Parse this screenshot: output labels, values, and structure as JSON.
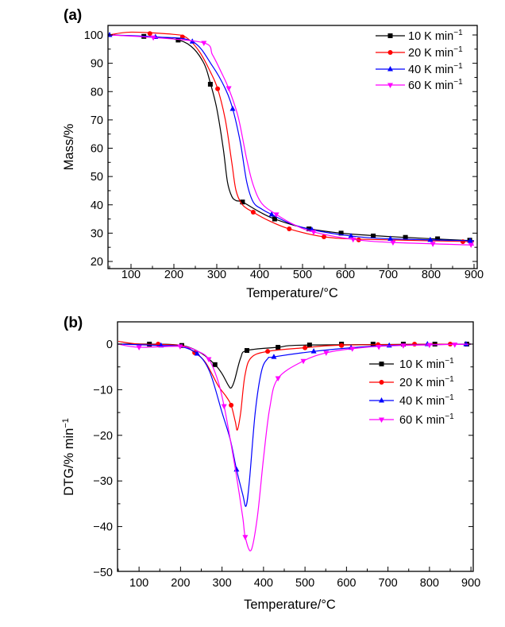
{
  "chart_data": [
    {
      "panel_label": "(a)",
      "type": "line",
      "xlabel": "Temperature/°C",
      "ylabel": "Mass/%",
      "xlim": [
        50,
        900
      ],
      "ylim": [
        20,
        102
      ],
      "xticks": [
        100,
        200,
        300,
        400,
        500,
        600,
        700,
        800,
        900
      ],
      "yticks": [
        20,
        30,
        40,
        50,
        60,
        70,
        80,
        90,
        100
      ],
      "grid": false,
      "legend_placement": "top-right",
      "series": [
        {
          "name": "10 K min",
          "sup": "−1",
          "color": "#000000",
          "marker": "square",
          "curve": [
            [
              50,
              100
            ],
            [
              130,
              99.5
            ],
            [
              200,
              98.6
            ],
            [
              240,
              96
            ],
            [
              270,
              90
            ],
            [
              285,
              83
            ],
            [
              300,
              74
            ],
            [
              315,
              60
            ],
            [
              325,
              48
            ],
            [
              335,
              43
            ],
            [
              345,
              41.5
            ],
            [
              360,
              41
            ],
            [
              400,
              37.5
            ],
            [
              435,
              35
            ],
            [
              500,
              32
            ],
            [
              590,
              30
            ],
            [
              700,
              28.8
            ],
            [
              900,
              27.3
            ]
          ],
          "markers": [
            [
              130,
              99.5
            ],
            [
              210,
              98.2
            ],
            [
              285,
              82.6
            ],
            [
              360,
              41
            ],
            [
              435,
              35
            ],
            [
              515,
              31.5
            ],
            [
              590,
              30
            ],
            [
              665,
              29
            ],
            [
              740,
              28.5
            ],
            [
              815,
              28
            ],
            [
              890,
              27.5
            ]
          ]
        },
        {
          "name": "20 K min",
          "sup": "−1",
          "color": "#ff0000",
          "marker": "circle",
          "curve": [
            [
              50,
              100
            ],
            [
              100,
              101
            ],
            [
              200,
              100.2
            ],
            [
              230,
              99
            ],
            [
              260,
              94
            ],
            [
              285,
              87
            ],
            [
              302,
              81
            ],
            [
              320,
              70
            ],
            [
              335,
              55
            ],
            [
              345,
              45
            ],
            [
              360,
              40
            ],
            [
              385,
              37.4
            ],
            [
              420,
              34.5
            ],
            [
              469,
              31.5
            ],
            [
              550,
              28.7
            ],
            [
              650,
              27.8
            ],
            [
              900,
              27
            ]
          ],
          "markers": [
            [
              144,
              100.5
            ],
            [
              220,
              99.3
            ],
            [
              302,
              81
            ],
            [
              385,
              37.4
            ],
            [
              469,
              31.5
            ],
            [
              550,
              28.7
            ],
            [
              631,
              27.6
            ],
            [
              874,
              27
            ]
          ]
        },
        {
          "name": "40 K min",
          "sup": "−1",
          "color": "#0000ff",
          "marker": "triangle-up",
          "curve": [
            [
              50,
              100
            ],
            [
              157,
              99.3
            ],
            [
              243,
              97.7
            ],
            [
              290,
              89
            ],
            [
              320,
              81
            ],
            [
              337,
              74
            ],
            [
              355,
              62
            ],
            [
              370,
              48
            ],
            [
              385,
              41
            ],
            [
              405,
              38.5
            ],
            [
              428,
              36.6
            ],
            [
              470,
              33.5
            ],
            [
              522,
              31.2
            ],
            [
              613,
              29
            ],
            [
              705,
              28
            ],
            [
              900,
              27.3
            ]
          ],
          "markers": [
            [
              50,
              100
            ],
            [
              157,
              99.3
            ],
            [
              243,
              97.7
            ],
            [
              337,
              73.9
            ],
            [
              428,
              36.6
            ],
            [
              522,
              31.2
            ],
            [
              613,
              29
            ],
            [
              705,
              28
            ],
            [
              798,
              27.6
            ],
            [
              891,
              27.3
            ]
          ]
        },
        {
          "name": "60 K min",
          "sup": "−1",
          "color": "#ff00ff",
          "marker": "triangle-down",
          "curve": [
            [
              50,
              100
            ],
            [
              152,
              99.1
            ],
            [
              270,
              97.2
            ],
            [
              290,
              93
            ],
            [
              310,
              87
            ],
            [
              328,
              81
            ],
            [
              350,
              71
            ],
            [
              370,
              56
            ],
            [
              385,
              47
            ],
            [
              405,
              40.5
            ],
            [
              439,
              36.6
            ],
            [
              480,
              33
            ],
            [
              526,
              30.4
            ],
            [
              618,
              27.8
            ],
            [
              711,
              26.7
            ],
            [
              900,
              25.8
            ]
          ],
          "markers": [
            [
              152,
              99.1
            ],
            [
              270,
              97.2
            ],
            [
              328,
              81.2
            ],
            [
              439,
              36.6
            ],
            [
              526,
              30.4
            ],
            [
              618,
              27.8
            ],
            [
              711,
              26.7
            ],
            [
              804,
              26.2
            ],
            [
              893,
              25.9
            ]
          ]
        }
      ]
    },
    {
      "panel_label": "(b)",
      "type": "line",
      "xlabel": "Temperature/°C",
      "ylabel": "DTG/% min",
      "ylabel_sup": "−1",
      "xlim": [
        50,
        900
      ],
      "ylim": [
        -50,
        2.5
      ],
      "xticks": [
        100,
        200,
        300,
        400,
        500,
        600,
        700,
        800,
        900
      ],
      "yticks": [
        -50,
        -40,
        -30,
        -20,
        -10,
        0
      ],
      "grid": false,
      "legend_placement": "right",
      "series": [
        {
          "name": "10 K min",
          "sup": "−1",
          "color": "#000000",
          "marker": "square",
          "curve": [
            [
              50,
              0
            ],
            [
              125,
              0
            ],
            [
              203,
              -0.3
            ],
            [
              250,
              -2
            ],
            [
              283,
              -4.5
            ],
            [
              300,
              -6.5
            ],
            [
              315,
              -9
            ],
            [
              322,
              -9.6
            ],
            [
              330,
              -8
            ],
            [
              345,
              -3
            ],
            [
              360,
              -1.4
            ],
            [
              435,
              -0.7
            ],
            [
              511,
              -0.2
            ],
            [
              900,
              0
            ]
          ],
          "markers": [
            [
              125,
              0
            ],
            [
              203,
              -0.3
            ],
            [
              283,
              -4.5
            ],
            [
              360,
              -1.4
            ],
            [
              435,
              -0.7
            ],
            [
              511,
              -0.2
            ],
            [
              588,
              0
            ],
            [
              664,
              0
            ],
            [
              737,
              0
            ],
            [
              813,
              0
            ],
            [
              890,
              0
            ]
          ]
        },
        {
          "name": "20 K min",
          "sup": "−1",
          "color": "#ff0000",
          "marker": "circle",
          "curve": [
            [
              50,
              0.6
            ],
            [
              100,
              0
            ],
            [
              200,
              -0.3
            ],
            [
              234,
              -1.9
            ],
            [
              260,
              -4
            ],
            [
              290,
              -9
            ],
            [
              310,
              -11.5
            ],
            [
              322,
              -13.4
            ],
            [
              332,
              -17
            ],
            [
              337,
              -18.8
            ],
            [
              345,
              -15
            ],
            [
              355,
              -7
            ],
            [
              370,
              -3
            ],
            [
              410,
              -1.6
            ],
            [
              500,
              -0.8
            ],
            [
              600,
              -0.2
            ],
            [
              900,
              0
            ]
          ],
          "markers": [
            [
              146,
              0
            ],
            [
              234,
              -1.9
            ],
            [
              322,
              -13.4
            ],
            [
              410,
              -1.6
            ],
            [
              500,
              -0.8
            ],
            [
              588,
              -0.3
            ],
            [
              676,
              -0.1
            ],
            [
              764,
              0
            ],
            [
              850,
              0
            ]
          ]
        },
        {
          "name": "40 K min",
          "sup": "−1",
          "color": "#0000ff",
          "marker": "triangle-up",
          "curve": [
            [
              50,
              0
            ],
            [
              153,
              -0.3
            ],
            [
              200,
              -0.5
            ],
            [
              240,
              -2.1
            ],
            [
              270,
              -6
            ],
            [
              300,
              -15
            ],
            [
              320,
              -21
            ],
            [
              335,
              -27.5
            ],
            [
              350,
              -33
            ],
            [
              358,
              -35.5
            ],
            [
              366,
              -30
            ],
            [
              380,
              -15
            ],
            [
              395,
              -6
            ],
            [
              410,
              -3.2
            ],
            [
              425,
              -2.8
            ],
            [
              521,
              -1.6
            ],
            [
              611,
              -0.8
            ],
            [
              703,
              -0.3
            ],
            [
              900,
              0
            ]
          ],
          "markers": [
            [
              153,
              -0.3
            ],
            [
              240,
              -2.1
            ],
            [
              335,
              -27.5
            ],
            [
              425,
              -2.8
            ],
            [
              521,
              -1.6
            ],
            [
              611,
              -0.8
            ],
            [
              703,
              -0.3
            ],
            [
              795,
              0
            ],
            [
              888,
              0
            ]
          ]
        },
        {
          "name": "60 K min",
          "sup": "−1",
          "color": "#ff00ff",
          "marker": "triangle-down",
          "curve": [
            [
              50,
              0
            ],
            [
              100,
              -0.7
            ],
            [
              200,
              -0.5
            ],
            [
              240,
              -1.5
            ],
            [
              268,
              -3.3
            ],
            [
              290,
              -8
            ],
            [
              305,
              -13.6
            ],
            [
              320,
              -21
            ],
            [
              335,
              -29
            ],
            [
              350,
              -38
            ],
            [
              356,
              -42.3
            ],
            [
              370,
              -45.2
            ],
            [
              385,
              -38
            ],
            [
              400,
              -25
            ],
            [
              415,
              -14
            ],
            [
              435,
              -7.5
            ],
            [
              496,
              -3.7
            ],
            [
              551,
              -1.9
            ],
            [
              614,
              -1
            ],
            [
              700,
              -0.4
            ],
            [
              900,
              0
            ]
          ],
          "markers": [
            [
              100,
              -0.7
            ],
            [
              199,
              -0.5
            ],
            [
              268,
              -3.3
            ],
            [
              305,
              -13.6
            ],
            [
              356,
              -42.3
            ],
            [
              435,
              -7.5
            ],
            [
              496,
              -3.7
            ],
            [
              551,
              -1.9
            ],
            [
              614,
              -1
            ],
            [
              678,
              -0.6
            ],
            [
              737,
              -0.3
            ],
            [
              800,
              -0.2
            ],
            [
              861,
              -0.1
            ]
          ]
        }
      ]
    }
  ]
}
